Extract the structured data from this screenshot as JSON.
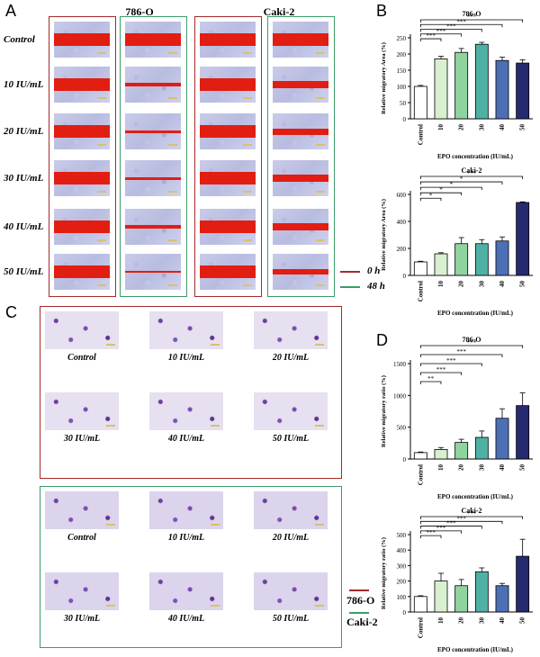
{
  "panel_a": {
    "letter": "A",
    "cell_lines": [
      "786-O",
      "Caki-2"
    ],
    "rows": [
      "Control",
      "10 IU/mL",
      "20 IU/mL",
      "30 IU/mL",
      "40 IU/mL",
      "50 IU/mL"
    ],
    "legend": [
      {
        "label": "0 h",
        "color": "#a52a2a"
      },
      {
        "label": "48 h",
        "color": "#3d9b6a"
      }
    ]
  },
  "panel_b": {
    "letter": "B"
  },
  "panel_c": {
    "letter": "C",
    "labels": [
      "Control",
      "10 IU/mL",
      "20 IU/mL",
      "30 IU/mL",
      "40 IU/mL",
      "50 IU/mL"
    ],
    "legend": [
      {
        "label": "786-O",
        "color": "#a52a2a"
      },
      {
        "label": "Caki-2",
        "color": "#3d9b6a"
      }
    ]
  },
  "panel_d": {
    "letter": "D"
  },
  "chart_data": [
    {
      "type": "bar",
      "title": "786-O",
      "ylabel": "Relative migratory Area (%)",
      "xlabel": "EPO concentration (IU/mL)",
      "categories": [
        "Control",
        "10",
        "20",
        "30",
        "40",
        "50"
      ],
      "values": [
        100,
        185,
        205,
        230,
        180,
        172
      ],
      "errors": [
        3,
        8,
        12,
        6,
        10,
        10
      ],
      "ylim": [
        0,
        250
      ],
      "yticks": [
        0,
        50,
        100,
        150,
        200,
        250
      ],
      "colors": [
        "#ffffff",
        "#d8efd0",
        "#8fd39e",
        "#4fb0a4",
        "#4d6fb6",
        "#262a6e"
      ],
      "significance": [
        "***",
        "***",
        "***",
        "***",
        "***"
      ]
    },
    {
      "type": "bar",
      "title": "Caki-2",
      "ylabel": "Relative migratory Area (%)",
      "xlabel": "EPO concentration (IU/mL)",
      "categories": [
        "Control",
        "10",
        "20",
        "30",
        "40",
        "50"
      ],
      "values": [
        100,
        160,
        235,
        235,
        255,
        540
      ],
      "errors": [
        5,
        8,
        45,
        30,
        30,
        5
      ],
      "ylim": [
        0,
        600
      ],
      "yticks": [
        0,
        200,
        400,
        600
      ],
      "colors": [
        "#ffffff",
        "#d8efd0",
        "#8fd39e",
        "#4fb0a4",
        "#4d6fb6",
        "#262a6e"
      ],
      "significance": [
        "*",
        "*",
        "*",
        "*",
        "***"
      ]
    },
    {
      "type": "bar",
      "title": "786-O",
      "ylabel": "Relative migratory ratio (%)",
      "xlabel": "EPO concentration (IU/mL)",
      "categories": [
        "Control",
        "10",
        "20",
        "30",
        "40",
        "50"
      ],
      "values": [
        100,
        150,
        260,
        340,
        640,
        840
      ],
      "errors": [
        10,
        30,
        50,
        100,
        150,
        200
      ],
      "ylim": [
        0,
        1500
      ],
      "yticks": [
        0,
        500,
        1000,
        1500
      ],
      "colors": [
        "#ffffff",
        "#d8efd0",
        "#8fd39e",
        "#4fb0a4",
        "#4d6fb6",
        "#262a6e"
      ],
      "significance": [
        "**",
        "***",
        "***",
        "***",
        "***"
      ]
    },
    {
      "type": "bar",
      "title": "Caki-2",
      "ylabel": "Relative migratory ratio (%)",
      "xlabel": "EPO concentration (IU/mL)",
      "categories": [
        "Control",
        "10",
        "20",
        "30",
        "40",
        "50"
      ],
      "values": [
        100,
        200,
        170,
        260,
        170,
        360
      ],
      "errors": [
        5,
        50,
        40,
        25,
        15,
        110
      ],
      "ylim": [
        0,
        500
      ],
      "yticks": [
        0,
        100,
        200,
        300,
        400,
        500
      ],
      "colors": [
        "#ffffff",
        "#d8efd0",
        "#8fd39e",
        "#4fb0a4",
        "#4d6fb6",
        "#262a6e"
      ],
      "significance": [
        "***",
        "***",
        "***",
        "***",
        "***"
      ]
    }
  ]
}
